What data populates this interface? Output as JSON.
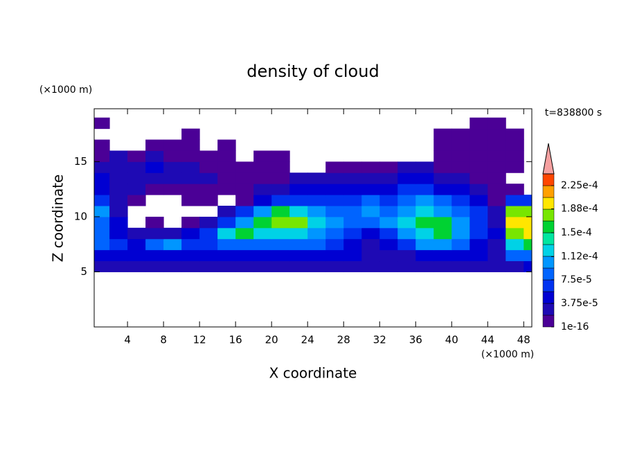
{
  "chart_data": {
    "type": "contour",
    "title": "density of cloud",
    "x_label": "X coordinate",
    "y_label": "Z coordinate",
    "x_unit": "(×1000 m)",
    "y_unit": "(×1000 m)",
    "annotation": "t=838800 s",
    "xlim": [
      0.3,
      48.9
    ],
    "ylim": [
      0,
      19.8
    ],
    "xticks": [
      4,
      8,
      12,
      16,
      20,
      24,
      28,
      32,
      36,
      40,
      44,
      48
    ],
    "yticks": [
      5,
      10,
      15
    ],
    "x": [
      1,
      3,
      5,
      7,
      9,
      11,
      13,
      15,
      17,
      19,
      21,
      23,
      25,
      27,
      29,
      31,
      33,
      35,
      37,
      39,
      41,
      43,
      45,
      47,
      49
    ],
    "y": [
      5.5,
      6.5,
      7.5,
      8.5,
      9.5,
      10.5,
      11.5,
      12.5,
      13.5,
      14.5,
      15.5,
      16.5,
      17.5,
      18.5
    ],
    "z": [
      [
        2e-05,
        2e-05,
        2e-05,
        2e-05,
        2e-05,
        2e-05,
        2e-05,
        2e-05,
        2e-05,
        2e-05,
        2e-05,
        2e-05,
        2e-05,
        2e-05,
        2e-05,
        2e-05,
        2e-05,
        2e-05,
        2e-05,
        2e-05,
        2e-05,
        2e-05,
        2e-05,
        3e-05,
        5e-05
      ],
      [
        5e-05,
        5e-05,
        5e-05,
        4e-05,
        4e-05,
        4e-05,
        4e-05,
        4e-05,
        4e-05,
        4e-05,
        4e-05,
        4e-05,
        4e-05,
        4e-05,
        4e-05,
        3e-05,
        3e-05,
        3e-05,
        5e-05,
        5e-05,
        5e-05,
        5e-05,
        3e-05,
        9e-05,
        9e-05
      ],
      [
        9e-05,
        7e-05,
        5e-05,
        9e-05,
        0.00011,
        7e-05,
        7e-05,
        9e-05,
        9e-05,
        9e-05,
        9e-05,
        9e-05,
        9e-05,
        7e-05,
        5e-05,
        3e-05,
        5e-05,
        7e-05,
        0.00011,
        0.00011,
        9e-05,
        5e-05,
        3e-05,
        0.00013,
        0.00015
      ],
      [
        9e-05,
        5e-05,
        3e-05,
        3e-05,
        3e-05,
        5e-05,
        7e-05,
        0.00013,
        0.00015,
        0.00013,
        0.00013,
        0.00013,
        0.00011,
        9e-05,
        7e-05,
        5e-05,
        7e-05,
        0.00011,
        0.00013,
        0.00015,
        0.00011,
        7e-05,
        5e-05,
        0.00017,
        0.00019
      ],
      [
        9e-05,
        5e-05,
        null,
        1e-05,
        null,
        1e-05,
        3e-05,
        7e-05,
        0.00011,
        0.00015,
        0.00017,
        0.00017,
        0.00013,
        0.00011,
        9e-05,
        9e-05,
        0.00011,
        0.00013,
        0.00015,
        0.00015,
        0.00011,
        7e-05,
        3e-05,
        0.00019,
        0.00019
      ],
      [
        0.00011,
        3e-05,
        null,
        null,
        null,
        null,
        null,
        3e-05,
        7e-05,
        0.00011,
        0.00015,
        0.00013,
        0.00011,
        9e-05,
        9e-05,
        0.00011,
        9e-05,
        0.00011,
        0.00013,
        0.00011,
        9e-05,
        7e-05,
        3e-05,
        0.00017,
        0.00017
      ],
      [
        7e-05,
        3e-05,
        1e-05,
        null,
        null,
        1e-05,
        1e-05,
        null,
        1e-05,
        5e-05,
        7e-05,
        7e-05,
        7e-05,
        7e-05,
        7e-05,
        9e-05,
        7e-05,
        9e-05,
        0.00011,
        9e-05,
        7e-05,
        5e-05,
        1e-05,
        7e-05,
        7e-05
      ],
      [
        5e-05,
        3e-05,
        3e-05,
        1e-05,
        1e-05,
        1e-05,
        1e-05,
        1e-05,
        1e-05,
        3e-05,
        3e-05,
        5e-05,
        5e-05,
        5e-05,
        5e-05,
        5e-05,
        5e-05,
        7e-05,
        7e-05,
        5e-05,
        5e-05,
        3e-05,
        1e-05,
        1e-05,
        null
      ],
      [
        5e-05,
        3e-05,
        3e-05,
        3e-05,
        3e-05,
        3e-05,
        3e-05,
        1e-05,
        1e-05,
        1e-05,
        1e-05,
        3e-05,
        3e-05,
        3e-05,
        3e-05,
        3e-05,
        3e-05,
        5e-05,
        5e-05,
        3e-05,
        3e-05,
        1e-05,
        1e-05,
        null,
        null
      ],
      [
        3e-05,
        3e-05,
        3e-05,
        5e-05,
        3e-05,
        3e-05,
        1e-05,
        1e-05,
        1e-05,
        1e-05,
        1e-05,
        null,
        null,
        1e-05,
        1e-05,
        1e-05,
        1e-05,
        3e-05,
        3e-05,
        1e-05,
        1e-05,
        1e-05,
        1e-05,
        1e-05,
        null
      ],
      [
        1e-05,
        3e-05,
        1e-05,
        3e-05,
        1e-05,
        1e-05,
        1e-05,
        1e-05,
        null,
        1e-05,
        1e-05,
        null,
        null,
        null,
        null,
        null,
        null,
        null,
        null,
        1e-05,
        1e-05,
        1e-05,
        1e-05,
        1e-05,
        null
      ],
      [
        1e-05,
        null,
        null,
        1e-05,
        1e-05,
        1e-05,
        null,
        1e-05,
        null,
        null,
        null,
        null,
        null,
        null,
        null,
        null,
        null,
        null,
        null,
        1e-05,
        1e-05,
        1e-05,
        1e-05,
        1e-05,
        null
      ],
      [
        null,
        null,
        null,
        null,
        null,
        1e-05,
        null,
        null,
        null,
        null,
        null,
        null,
        null,
        null,
        null,
        null,
        null,
        null,
        null,
        1e-05,
        1e-05,
        1e-05,
        1e-05,
        1e-05,
        null
      ],
      [
        1e-05,
        null,
        null,
        null,
        null,
        null,
        null,
        null,
        null,
        null,
        null,
        null,
        null,
        null,
        null,
        null,
        null,
        null,
        null,
        null,
        null,
        1e-05,
        1e-05,
        null,
        null
      ]
    ],
    "colorbar": {
      "levels": [
        1e-16,
        1.875e-05,
        3.75e-05,
        5.625e-05,
        7.5e-05,
        9.375e-05,
        0.0001125,
        0.00013125,
        0.00015,
        0.00016875,
        0.0001875,
        0.00020625,
        0.000225,
        0.00024375
      ],
      "colors": [
        "#4b0096",
        "#1e0ab4",
        "#0000d2",
        "#0032f0",
        "#0064ff",
        "#0096ff",
        "#00d2e6",
        "#00e6a0",
        "#00d232",
        "#78e600",
        "#ffe600",
        "#ffa000",
        "#ff4600"
      ],
      "extend_color": "#f5a0a0",
      "ticks": [
        {
          "value": 1e-16,
          "label": "1e-16"
        },
        {
          "value": 3.75e-05,
          "label": "3.75e-5"
        },
        {
          "value": 7.5e-05,
          "label": "7.5e-5"
        },
        {
          "value": 0.000112,
          "label": "1.12e-4"
        },
        {
          "value": 0.00015,
          "label": "1.5e-4"
        },
        {
          "value": 0.000188,
          "label": "1.88e-4"
        },
        {
          "value": 0.000225,
          "label": "2.25e-4"
        }
      ]
    }
  }
}
